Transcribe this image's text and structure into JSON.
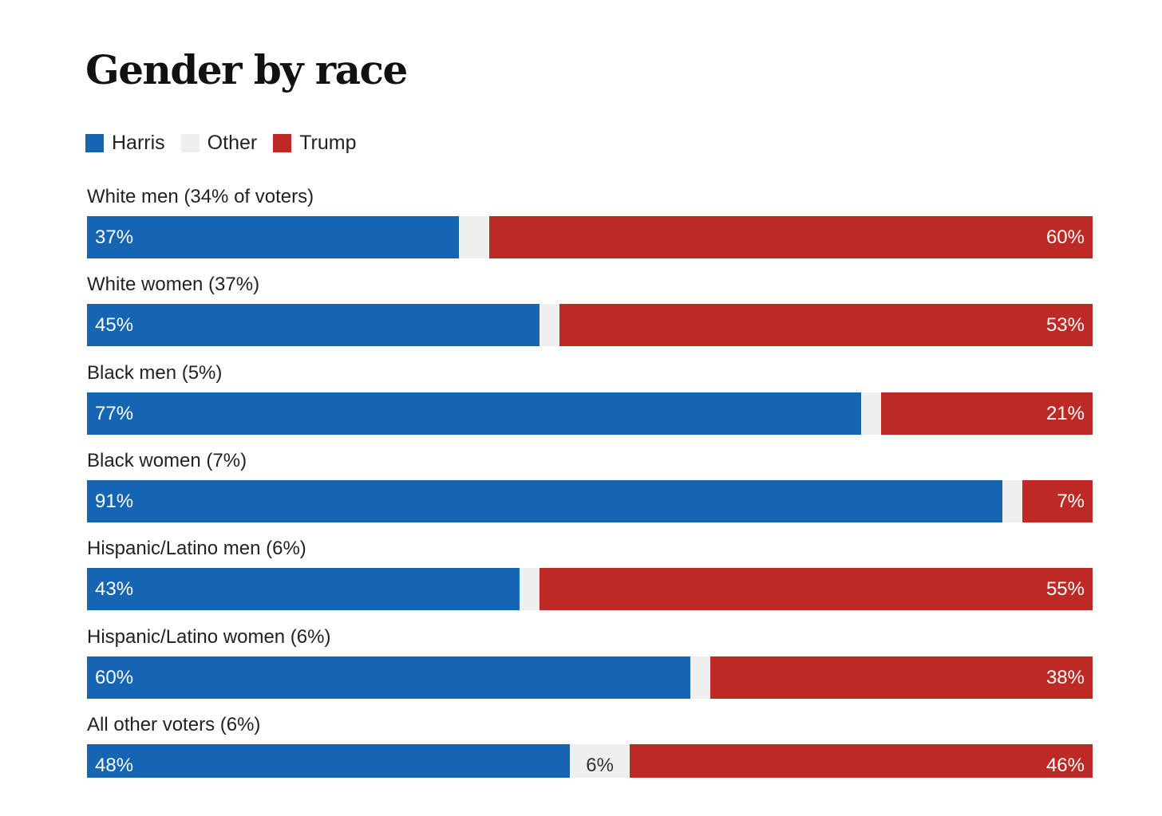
{
  "chart_data": {
    "type": "bar",
    "orientation": "horizontal-stacked",
    "title": "Gender by race",
    "legend": [
      "Harris",
      "Other",
      "Trump"
    ],
    "legend_placement": "top-left",
    "colors": {
      "Harris": "#1565b2",
      "Other": "#efefef",
      "Trump": "#bd2a25"
    },
    "categories": [
      "White men (34% of voters)",
      "White women (37%)",
      "Black men (5%)",
      "Black women (7%)",
      "Hispanic/Latino men (6%)",
      "Hispanic/Latino women (6%)",
      "All other voters (6%)"
    ],
    "series": [
      {
        "name": "Harris",
        "values": [
          37,
          45,
          77,
          91,
          43,
          60,
          48
        ]
      },
      {
        "name": "Other",
        "values": [
          3,
          2,
          2,
          2,
          2,
          2,
          6
        ]
      },
      {
        "name": "Trump",
        "values": [
          60,
          53,
          21,
          7,
          55,
          38,
          46
        ]
      }
    ],
    "other_labels_shown": [
      false,
      false,
      false,
      false,
      false,
      false,
      true
    ],
    "xlim": [
      0,
      100
    ]
  }
}
